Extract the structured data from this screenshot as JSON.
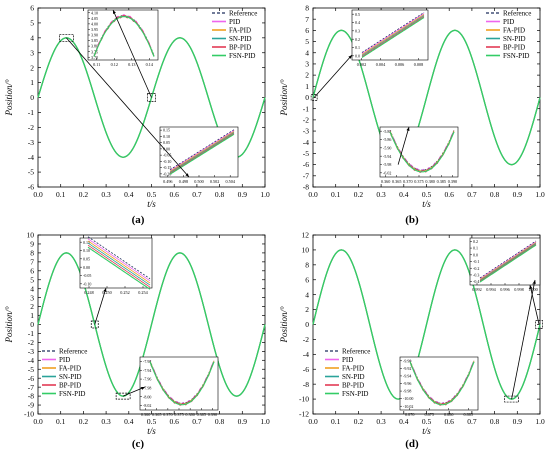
{
  "chart_data": [
    {
      "type": "line",
      "panel_label": "(a)",
      "xlabel": "t/s",
      "ylabel": "Position/°",
      "xlim": [
        0.0,
        1.0
      ],
      "ylim": [
        -6,
        6
      ],
      "xticks": [
        "0.0",
        "0.1",
        "0.2",
        "0.3",
        "0.4",
        "0.5",
        "0.6",
        "0.7",
        "0.8",
        "0.9",
        "1.0"
      ],
      "yticks": [
        "-6",
        "-5",
        "-4",
        "-3",
        "-2",
        "-1",
        "0",
        "1",
        "2",
        "3",
        "4",
        "5",
        "6"
      ],
      "legend": [
        "Reference",
        "PID",
        "FA-PID",
        "SN-PID",
        "BP-PID",
        "FSN-PID"
      ],
      "legend_position": "top-right",
      "signal": {
        "amplitude": 4,
        "frequency_hz": 2,
        "phase": "sine"
      },
      "series": [
        {
          "name": "Reference",
          "function": "4·sin(4πt)"
        },
        {
          "name": "PID",
          "function": "≈ Reference"
        },
        {
          "name": "FA-PID",
          "function": "≈ Reference"
        },
        {
          "name": "SN-PID",
          "function": "≈ Reference"
        },
        {
          "name": "BP-PID",
          "function": "≈ Reference"
        },
        {
          "name": "FSN-PID",
          "function": "≈ Reference"
        }
      ],
      "insets": [
        {
          "xlim": [
            0.11,
            0.14
          ],
          "xticks": [
            "0.11",
            "0.12",
            "0.13",
            "0.14"
          ],
          "yticks": [
            "4.10",
            "4.05",
            "4.00",
            "3.95",
            "3.90",
            "3.85",
            "3.80",
            "3.75",
            "3.70"
          ]
        },
        {
          "xlim": [
            0.496,
            0.504
          ],
          "xticks": [
            "0.496",
            "0.498",
            "0.500",
            "0.502",
            "0.504"
          ],
          "yticks": [
            "0.15",
            "0.10",
            "0.05",
            "0.00",
            "-0.05",
            "-0.10",
            "-0.15",
            "-0.20"
          ]
        }
      ]
    },
    {
      "type": "line",
      "panel_label": "(b)",
      "xlabel": "t/s",
      "ylabel": "Position/°",
      "xlim": [
        0.0,
        1.0
      ],
      "ylim": [
        -8,
        8
      ],
      "xticks": [
        "0.0",
        "0.1",
        "0.2",
        "0.3",
        "0.4",
        "0.5",
        "0.6",
        "0.7",
        "0.8",
        "0.9",
        "1.0"
      ],
      "yticks": [
        "-8",
        "-7",
        "-6",
        "-5",
        "-4",
        "-3",
        "-2",
        "-1",
        "0",
        "1",
        "2",
        "3",
        "4",
        "5",
        "6",
        "7",
        "8"
      ],
      "legend": [
        "Reference",
        "PID",
        "FA-PID",
        "SN-PID",
        "BP-PID",
        "FSN-PID"
      ],
      "legend_position": "top-right",
      "signal": {
        "amplitude": 6,
        "frequency_hz": 2,
        "phase": "sine"
      },
      "series": [
        {
          "name": "Reference",
          "function": "6·sin(4πt)"
        },
        {
          "name": "PID",
          "function": "≈ Reference"
        },
        {
          "name": "FA-PID",
          "function": "≈ Reference"
        },
        {
          "name": "SN-PID",
          "function": "≈ Reference"
        },
        {
          "name": "BP-PID",
          "function": "≈ Reference"
        },
        {
          "name": "FSN-PID",
          "function": "≈ Reference"
        }
      ],
      "insets": [
        {
          "xlim": [
            0.0,
            0.008
          ],
          "xticks": [
            "0.002",
            "0.004",
            "0.006",
            "0.008"
          ],
          "yticks": [
            "0.5",
            "0.4",
            "0.3",
            "0.2",
            "0.1",
            "0.0"
          ]
        },
        {
          "xlim": [
            0.36,
            0.39
          ],
          "xticks": [
            "0.360",
            "0.365",
            "0.370",
            "0.375",
            "0.380",
            "0.385",
            "0.390"
          ],
          "yticks": [
            "-5.82",
            "-5.86",
            "-5.90",
            "-5.94",
            "-5.98",
            "-6.02"
          ]
        }
      ]
    },
    {
      "type": "line",
      "panel_label": "(c)",
      "xlabel": "t/s",
      "ylabel": "Position/°",
      "xlim": [
        0.0,
        1.0
      ],
      "ylim": [
        -10,
        10
      ],
      "xticks": [
        "0.0",
        "0.1",
        "0.2",
        "0.3",
        "0.4",
        "0.5",
        "0.6",
        "0.7",
        "0.8",
        "0.9",
        "1.0"
      ],
      "yticks": [
        "-10",
        "-9",
        "-8",
        "-7",
        "-6",
        "-5",
        "-4",
        "-3",
        "-2",
        "-1",
        "0",
        "1",
        "2",
        "3",
        "4",
        "5",
        "6",
        "7",
        "8",
        "9",
        "10"
      ],
      "legend": [
        "Reference",
        "PID",
        "FA-PID",
        "SN-PID",
        "BP-PID",
        "FSN-PID"
      ],
      "legend_position": "bottom-left",
      "signal": {
        "amplitude": 8,
        "frequency_hz": 2,
        "phase": "sine"
      },
      "series": [
        {
          "name": "Reference",
          "function": "8·sin(4πt)"
        },
        {
          "name": "PID",
          "function": "≈ Reference"
        },
        {
          "name": "FA-PID",
          "function": "≈ Reference"
        },
        {
          "name": "SN-PID",
          "function": "≈ Reference"
        },
        {
          "name": "BP-PID",
          "function": "≈ Reference"
        },
        {
          "name": "FSN-PID",
          "function": "≈ Reference"
        }
      ],
      "insets": [
        {
          "xlim": [
            0.248,
            0.254
          ],
          "xticks": [
            "0.248",
            "0.250",
            "0.252",
            "0.254"
          ],
          "yticks": [
            "0.15",
            "0.10",
            "0.05",
            "0.00",
            "-0.05",
            "-0.10"
          ]
        },
        {
          "xlim": [
            0.36,
            0.39
          ],
          "xticks": [
            "0.360",
            "0.365",
            "0.370",
            "0.375",
            "0.380",
            "0.385",
            "0.390"
          ],
          "yticks": [
            "-7.92",
            "-7.94",
            "-7.96",
            "-7.98",
            "-8.00",
            "-8.02"
          ]
        }
      ]
    },
    {
      "type": "line",
      "panel_label": "(d)",
      "xlabel": "t/s",
      "ylabel": "Position/°",
      "xlim": [
        0.0,
        1.0
      ],
      "ylim": [
        -12,
        12
      ],
      "xticks": [
        "0.0",
        "0.1",
        "0.2",
        "0.3",
        "0.4",
        "0.5",
        "0.6",
        "0.7",
        "0.8",
        "0.9",
        "1.0"
      ],
      "yticks": [
        "-12",
        "-10",
        "-8",
        "-6",
        "-4",
        "-2",
        "0",
        "2",
        "4",
        "6",
        "8",
        "10",
        "12"
      ],
      "legend": [
        "Reference",
        "PID",
        "FA-PID",
        "SN-PID",
        "BP-PID",
        "FSN-PID"
      ],
      "legend_position": "bottom-left",
      "signal": {
        "amplitude": 10,
        "frequency_hz": 2,
        "phase": "sine"
      },
      "series": [
        {
          "name": "Reference",
          "function": "10·sin(4πt)"
        },
        {
          "name": "PID",
          "function": "≈ Reference"
        },
        {
          "name": "FA-PID",
          "function": "≈ Reference"
        },
        {
          "name": "SN-PID",
          "function": "≈ Reference"
        },
        {
          "name": "BP-PID",
          "function": "≈ Reference"
        },
        {
          "name": "FSN-PID",
          "function": "≈ Reference"
        }
      ],
      "insets": [
        {
          "xlim": [
            0.992,
            1.0
          ],
          "xticks": [
            "0.992",
            "0.994",
            "0.996",
            "0.998",
            "1.000"
          ],
          "yticks": [
            "0.2",
            "0.1",
            "0.0",
            "-0.1",
            "-0.2",
            "-0.3",
            "-0.4"
          ]
        },
        {
          "xlim": [
            0.87,
            0.885
          ],
          "xticks": [
            "0.870",
            "0.875",
            "0.880",
            "0.885"
          ],
          "yticks": [
            "-9.90",
            "-9.92",
            "-9.94",
            "-9.96",
            "-9.98",
            "-10.00",
            "-10.02"
          ]
        }
      ]
    }
  ],
  "colors": {
    "Reference": "#1f2d5c",
    "PID": "#ee66ee",
    "FA-PID": "#f0a020",
    "SN-PID": "#2aa39a",
    "BP-PID": "#e23a55",
    "FSN-PID": "#33cc66"
  }
}
